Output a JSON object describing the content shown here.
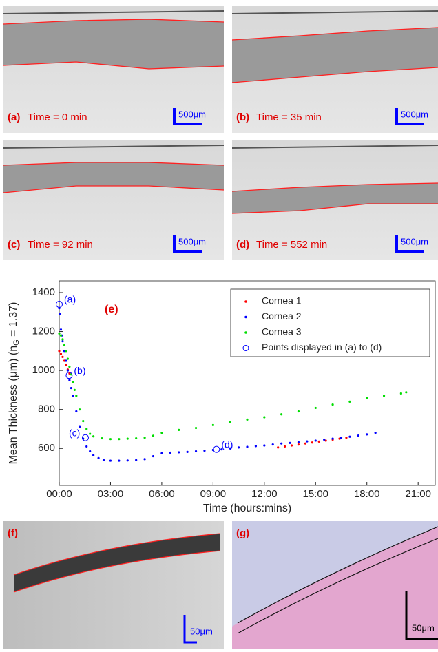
{
  "panels": [
    {
      "label": "(a)",
      "caption": "Time = 0 min",
      "scale": "500μm"
    },
    {
      "label": "(b)",
      "caption": "Time = 35 min",
      "scale": "500μm"
    },
    {
      "label": "(c)",
      "caption": "Time = 92 min",
      "scale": "500μm"
    },
    {
      "label": "(d)",
      "caption": "Time = 552 min",
      "scale": "500μm"
    }
  ],
  "bottom_panels": [
    {
      "label": "(f)",
      "scale": "50μm"
    },
    {
      "label": "(g)",
      "scale": "50μm"
    }
  ],
  "chart_data": {
    "type": "scatter",
    "annotation": "(e)",
    "xlabel": "Time (hours:mins)",
    "ylabel": [
      "Mean Thickness (μm) (n",
      "G",
      " = 1.37)"
    ],
    "xlim": [
      0,
      22
    ],
    "ylim": [
      410,
      1460
    ],
    "xticks": [
      {
        "value": 0,
        "label": "00:00"
      },
      {
        "value": 3,
        "label": "03:00"
      },
      {
        "value": 6,
        "label": "06:00"
      },
      {
        "value": 9,
        "label": "09:00"
      },
      {
        "value": 12,
        "label": "12:00"
      },
      {
        "value": 15,
        "label": "15:00"
      },
      {
        "value": 18,
        "label": "18:00"
      },
      {
        "value": 21,
        "label": "21:00"
      }
    ],
    "yticks": [
      600,
      800,
      1000,
      1200,
      1400
    ],
    "legend": "top-right",
    "series": [
      {
        "name": "Cornea 1",
        "color": "#ff0000",
        "marker": "dot",
        "x": [
          0,
          0.1,
          0.2,
          0.3,
          0.4,
          0.5,
          0.6,
          12.8,
          13.2,
          13.6,
          14,
          14.4,
          14.8,
          15.2,
          15.6,
          16,
          16.4,
          16.8
        ],
        "values": [
          1100,
          1085,
          1070,
          1050,
          1030,
          1005,
          985,
          605,
          610,
          615,
          620,
          625,
          630,
          635,
          640,
          645,
          650,
          655
        ]
      },
      {
        "name": "Cornea 2",
        "color": "#0000ff",
        "marker": "dot",
        "x": [
          0,
          0.05,
          0.1,
          0.15,
          0.2,
          0.3,
          0.4,
          0.5,
          0.6,
          0.7,
          0.8,
          1.0,
          1.2,
          1.4,
          1.6,
          1.8,
          2.0,
          2.3,
          2.6,
          3.0,
          3.5,
          4.0,
          4.5,
          5.0,
          5.5,
          6.0,
          6.5,
          7.0,
          7.5,
          8.0,
          8.5,
          9.0,
          9.5,
          10,
          10.5,
          11,
          11.5,
          12,
          12.5,
          13,
          13.5,
          14,
          14.5,
          15,
          15.5,
          16,
          16.5,
          17,
          17.5,
          18,
          18.5
        ],
        "values": [
          1320,
          1290,
          1210,
          1180,
          1150,
          1100,
          1050,
          1000,
          950,
          910,
          870,
          790,
          710,
          650,
          610,
          585,
          565,
          550,
          540,
          537,
          537,
          538,
          540,
          545,
          560,
          575,
          578,
          580,
          582,
          585,
          588,
          592,
          595,
          600,
          605,
          608,
          612,
          615,
          620,
          625,
          628,
          632,
          636,
          640,
          645,
          650,
          655,
          660,
          666,
          672,
          680
        ]
      },
      {
        "name": "Cornea 3",
        "color": "#00dd00",
        "marker": "dot",
        "x": [
          0,
          0.1,
          0.2,
          0.3,
          0.4,
          0.5,
          0.6,
          0.7,
          0.8,
          0.9,
          1.0,
          1.2,
          1.4,
          1.6,
          1.8,
          2.0,
          2.5,
          3.0,
          3.5,
          4.0,
          4.5,
          5.0,
          5.5,
          6.0,
          7,
          8,
          9,
          10,
          11,
          12,
          13,
          14,
          15,
          16,
          17,
          18,
          19,
          20,
          20.3
        ],
        "values": [
          1190,
          1180,
          1160,
          1130,
          1100,
          1060,
          1020,
          980,
          940,
          900,
          870,
          800,
          740,
          700,
          675,
          662,
          652,
          648,
          648,
          650,
          652,
          655,
          665,
          680,
          695,
          705,
          720,
          735,
          748,
          760,
          775,
          790,
          808,
          825,
          840,
          858,
          870,
          882,
          888
        ]
      },
      {
        "name": "Points displayed in (a) to (d)",
        "color": "#0000ff",
        "marker": "circle",
        "x": [
          0,
          0.58,
          1.53,
          9.2
        ],
        "values": [
          1340,
          975,
          655,
          595
        ],
        "point_labels": [
          "(a)",
          "(b)",
          "(c)",
          "(d)"
        ]
      }
    ]
  }
}
